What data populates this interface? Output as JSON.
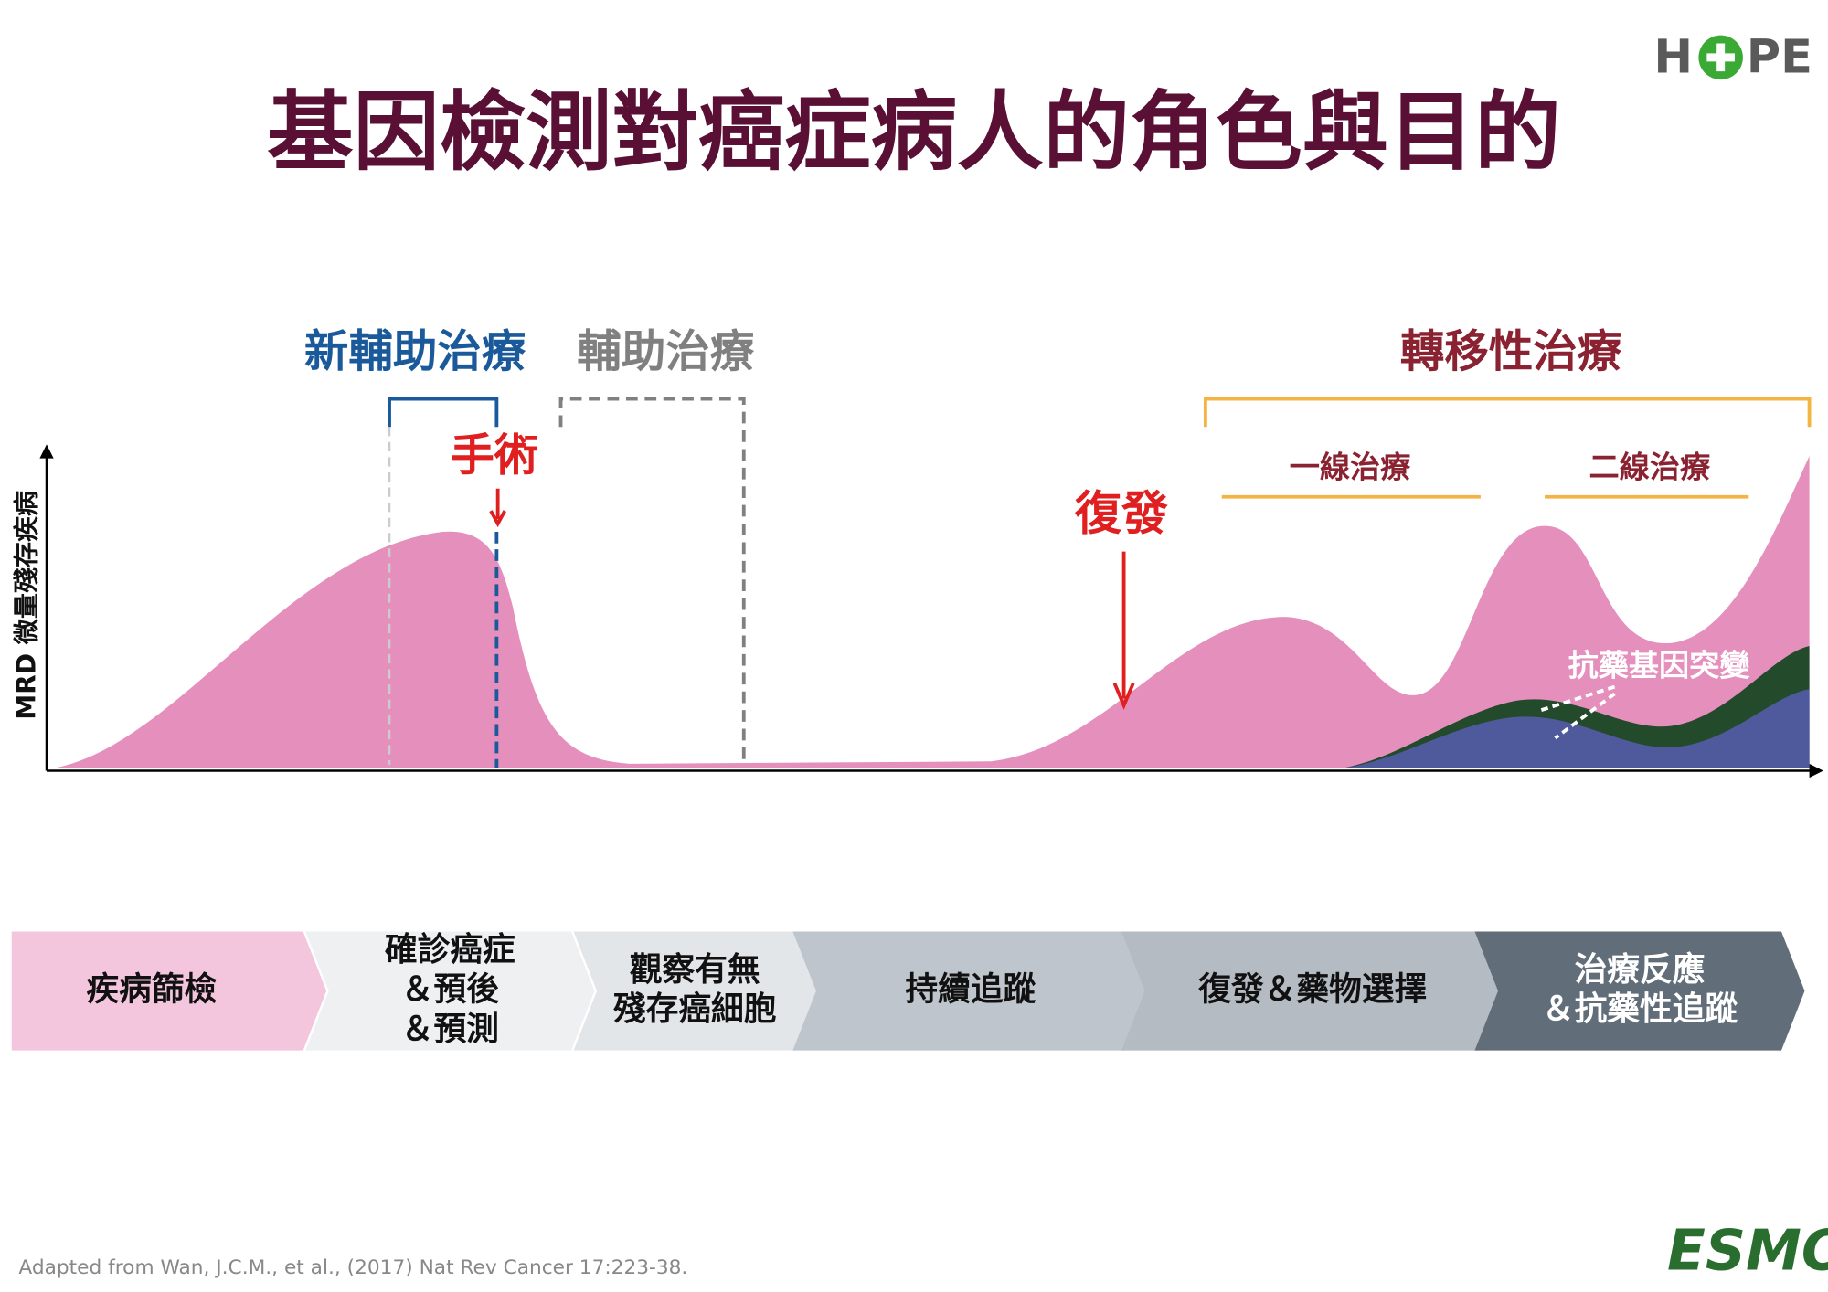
{
  "logo": {
    "left": "H",
    "right": "PE"
  },
  "title": "基因檢測對癌症病人的角色與目的",
  "y_axis_label": "MRD 微量殘存疾病",
  "phases": {
    "neoadjuvant": "新輔助治療",
    "adjuvant": "輔助治療",
    "metastatic": "轉移性治療",
    "first_line": "一線治療",
    "second_line": "二線治療"
  },
  "annotations": {
    "surgery": "手術",
    "relapse": "復發",
    "resistance": "抗藥基因突變"
  },
  "stages": [
    {
      "lines": [
        "疾病篩檢"
      ]
    },
    {
      "lines": [
        "確診癌症",
        "＆預後",
        "＆預測"
      ]
    },
    {
      "lines": [
        "觀察有無",
        "殘存癌細胞"
      ]
    },
    {
      "lines": [
        "持續追蹤"
      ]
    },
    {
      "lines": [
        "復發＆藥物選擇"
      ]
    },
    {
      "lines": [
        "治療反應",
        "＆抗藥性追蹤"
      ]
    }
  ],
  "footnote": "Adapted from Wan, J.C.M., et al., (2017) Nat Rev Cancer 17:223-38.",
  "esmo_logo": "ESMO"
}
